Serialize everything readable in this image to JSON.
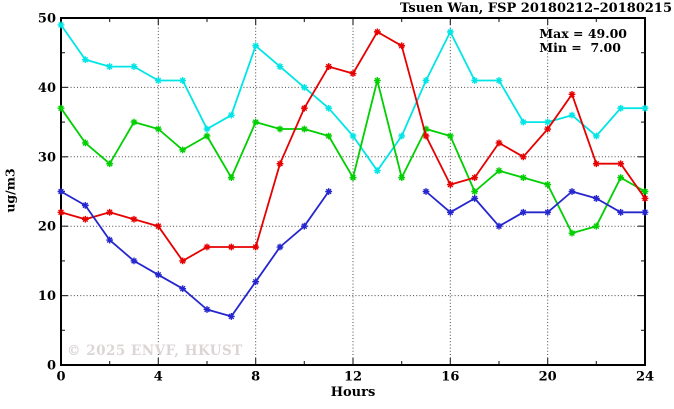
{
  "header": {
    "title": "Tsuen Wan, FSP 20180212–20180215"
  },
  "legend": {
    "max_label": "Max = 49.00",
    "min_label": "Min =  7.00"
  },
  "watermark": "© 2025  ENVF, HKUST",
  "chart_data": {
    "type": "line",
    "title": "Tsuen Wan, FSP 20180212–20180215",
    "xlabel": "Hours",
    "ylabel": "ug/m3",
    "xlim": [
      0,
      24
    ],
    "ylim": [
      0,
      50
    ],
    "x_major_ticks": [
      0,
      4,
      8,
      12,
      16,
      20,
      24
    ],
    "x_minor_step": 2,
    "y_major_ticks": [
      0,
      10,
      20,
      30,
      40,
      50
    ],
    "y_minor_step": 5,
    "grid": true,
    "legend_position": "top-right-inside",
    "max_value": 49.0,
    "min_value": 7.0,
    "x": [
      0,
      1,
      2,
      3,
      4,
      5,
      6,
      7,
      8,
      9,
      10,
      11,
      12,
      13,
      14,
      15,
      16,
      17,
      18,
      19,
      20,
      21,
      22,
      23,
      24
    ],
    "series": [
      {
        "name": "series-1-cyan",
        "color": "#00E5E5",
        "values": [
          49,
          44,
          43,
          43,
          41,
          41,
          34,
          36,
          46,
          43,
          40,
          37,
          33,
          28,
          33,
          41,
          48,
          41,
          41,
          35,
          35,
          36,
          33,
          37,
          37
        ]
      },
      {
        "name": "series-2-green",
        "color": "#00CF00",
        "values": [
          37,
          32,
          29,
          35,
          34,
          31,
          33,
          27,
          35,
          34,
          34,
          33,
          27,
          41,
          27,
          34,
          33,
          25,
          28,
          27,
          26,
          19,
          20,
          27,
          25
        ]
      },
      {
        "name": "series-3-red",
        "color": "#E60000",
        "values": [
          22,
          21,
          22,
          21,
          20,
          15,
          17,
          17,
          17,
          29,
          37,
          43,
          42,
          48,
          46,
          33,
          26,
          27,
          32,
          30,
          34,
          39,
          29,
          29,
          24
        ]
      },
      {
        "name": "series-4-blue",
        "color": "#2626CE",
        "values": [
          25,
          23,
          18,
          15,
          13,
          11,
          8,
          7,
          12,
          17,
          20,
          25,
          null,
          null,
          null,
          25,
          22,
          24,
          20,
          22,
          22,
          25,
          24,
          22,
          22
        ]
      }
    ]
  }
}
